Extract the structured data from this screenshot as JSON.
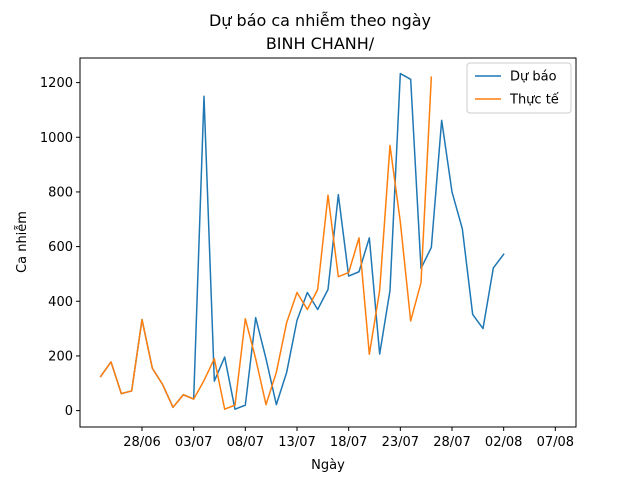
{
  "chart_data": {
    "type": "line",
    "title": "Dự báo ca nhiễm theo ngày",
    "subtitle": "BINH CHANH/",
    "xlabel": "Ngày",
    "ylabel": "Ca nhiễm",
    "x_ticks": [
      "28/06",
      "03/07",
      "08/07",
      "13/07",
      "18/07",
      "23/07",
      "28/07",
      "02/08",
      "07/08"
    ],
    "y_ticks": [
      0,
      200,
      400,
      600,
      800,
      1000,
      1200
    ],
    "xlim": [
      "2021-06-22",
      "2021-08-09"
    ],
    "ylim": [
      -60,
      1290
    ],
    "legend_position": "top-right",
    "grid": false,
    "series": [
      {
        "name": "Dự báo",
        "color": "#1f77b4",
        "points": [
          [
            "2021-06-24",
            125
          ],
          [
            "2021-06-25",
            178
          ],
          [
            "2021-06-26",
            62
          ],
          [
            "2021-06-27",
            72
          ],
          [
            "2021-06-28",
            333
          ],
          [
            "2021-06-29",
            155
          ],
          [
            "2021-06-30",
            95
          ],
          [
            "2021-07-01",
            12
          ],
          [
            "2021-07-02",
            58
          ],
          [
            "2021-07-03",
            42
          ],
          [
            "2021-07-04",
            1150
          ],
          [
            "2021-07-05",
            108
          ],
          [
            "2021-07-06",
            196
          ],
          [
            "2021-07-07",
            5
          ],
          [
            "2021-07-08",
            20
          ],
          [
            "2021-07-09",
            340
          ],
          [
            "2021-07-10",
            190
          ],
          [
            "2021-07-11",
            22
          ],
          [
            "2021-07-12",
            140
          ],
          [
            "2021-07-13",
            330
          ],
          [
            "2021-07-14",
            432
          ],
          [
            "2021-07-15",
            370
          ],
          [
            "2021-07-16",
            443
          ],
          [
            "2021-07-17",
            790
          ],
          [
            "2021-07-18",
            492
          ],
          [
            "2021-07-19",
            508
          ],
          [
            "2021-07-20",
            632
          ],
          [
            "2021-07-21",
            207
          ],
          [
            "2021-07-22",
            440
          ],
          [
            "2021-07-23",
            1233
          ],
          [
            "2021-07-24",
            1212
          ],
          [
            "2021-07-25",
            520
          ],
          [
            "2021-07-26",
            597
          ],
          [
            "2021-07-27",
            1062
          ],
          [
            "2021-07-28",
            800
          ],
          [
            "2021-07-29",
            665
          ],
          [
            "2021-07-30",
            352
          ],
          [
            "2021-07-31",
            300
          ],
          [
            "2021-08-01",
            522
          ],
          [
            "2021-08-02",
            572
          ]
        ]
      },
      {
        "name": "Thực tế",
        "color": "#ff7f0e",
        "points": [
          [
            "2021-06-24",
            125
          ],
          [
            "2021-06-25",
            178
          ],
          [
            "2021-06-26",
            62
          ],
          [
            "2021-06-27",
            72
          ],
          [
            "2021-06-28",
            333
          ],
          [
            "2021-06-29",
            155
          ],
          [
            "2021-06-30",
            95
          ],
          [
            "2021-07-01",
            12
          ],
          [
            "2021-07-02",
            58
          ],
          [
            "2021-07-03",
            42
          ],
          [
            "2021-07-04",
            110
          ],
          [
            "2021-07-05",
            190
          ],
          [
            "2021-07-06",
            5
          ],
          [
            "2021-07-07",
            20
          ],
          [
            "2021-07-08",
            336
          ],
          [
            "2021-07-09",
            190
          ],
          [
            "2021-07-10",
            22
          ],
          [
            "2021-07-11",
            140
          ],
          [
            "2021-07-12",
            322
          ],
          [
            "2021-07-13",
            432
          ],
          [
            "2021-07-14",
            370
          ],
          [
            "2021-07-15",
            443
          ],
          [
            "2021-07-16",
            788
          ],
          [
            "2021-07-17",
            490
          ],
          [
            "2021-07-18",
            505
          ],
          [
            "2021-07-19",
            632
          ],
          [
            "2021-07-20",
            206
          ],
          [
            "2021-07-21",
            440
          ],
          [
            "2021-07-22",
            970
          ],
          [
            "2021-07-23",
            690
          ],
          [
            "2021-07-24",
            328
          ],
          [
            "2021-07-25",
            468
          ],
          [
            "2021-07-26",
            1220
          ]
        ]
      }
    ]
  }
}
